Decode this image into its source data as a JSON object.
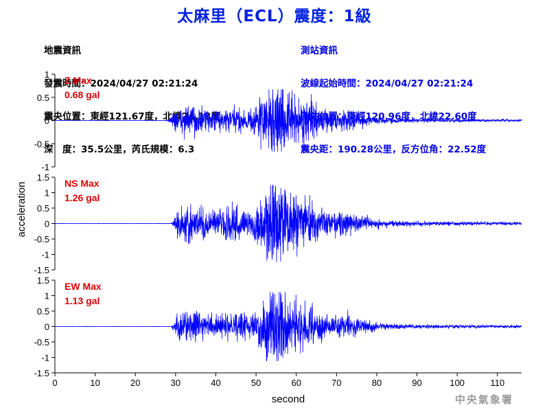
{
  "header": {
    "title": "太麻里（ECL）震度：1級"
  },
  "earthquake_info": {
    "heading": "地震資訊",
    "origin_time": "發震時間：2024/04/27 02:21:24",
    "epicenter": "震央位置：東經121.67度，北緯24.18度",
    "depth_magnitude": "深　度：35.5公里，芮氏規模：6.3"
  },
  "station_info": {
    "heading": "測站資訊",
    "wave_start_time": "波線起始時間：2024/04/27 02:21:24",
    "station_location": "測站位置：東經120.96度，北緯22.60度",
    "distance_azimuth": "震央距：190.28公里，反方位角：22.52度"
  },
  "watermark": "中央氣象署",
  "colors": {
    "title": "#0020e0",
    "station_info": "#0000e0",
    "trace": "#0000ff",
    "max_label": "#e00000",
    "axis": "#000000"
  },
  "chart_data": {
    "type": "line",
    "xlabel": "second",
    "ylabel": "acceleration",
    "xlim": [
      0,
      116
    ],
    "x_ticks": [
      "0",
      "10",
      "20",
      "30",
      "40",
      "50",
      "60",
      "70",
      "80",
      "90",
      "100",
      "110"
    ],
    "grid": false,
    "panels": [
      {
        "component": "Z",
        "max_title": "Z Max",
        "max_value": "0.68 gal",
        "peak": 0.68,
        "ylim": [
          -1,
          1
        ],
        "y_ticks": [
          "1",
          "0.5",
          "0",
          "-0.5",
          "-1"
        ],
        "onset_s": 28,
        "strong_motion_s": [
          50,
          62
        ]
      },
      {
        "component": "NS",
        "max_title": "NS Max",
        "max_value": "1.26 gal",
        "peak": 1.26,
        "ylim": [
          -1.5,
          1.5
        ],
        "y_ticks": [
          "1.5",
          "1",
          "0.5",
          "0",
          "-0.5",
          "-1",
          "-1.5"
        ],
        "onset_s": 29,
        "strong_motion_s": [
          50,
          62
        ]
      },
      {
        "component": "EW",
        "max_title": "EW Max",
        "max_value": "1.13 gal",
        "peak": 1.13,
        "ylim": [
          -1.5,
          1.5
        ],
        "y_ticks": [
          "1.5",
          "1",
          "0.5",
          "0",
          "-0.5",
          "-1",
          "-1.5"
        ],
        "onset_s": 29,
        "strong_motion_s": [
          50,
          62
        ]
      }
    ]
  }
}
